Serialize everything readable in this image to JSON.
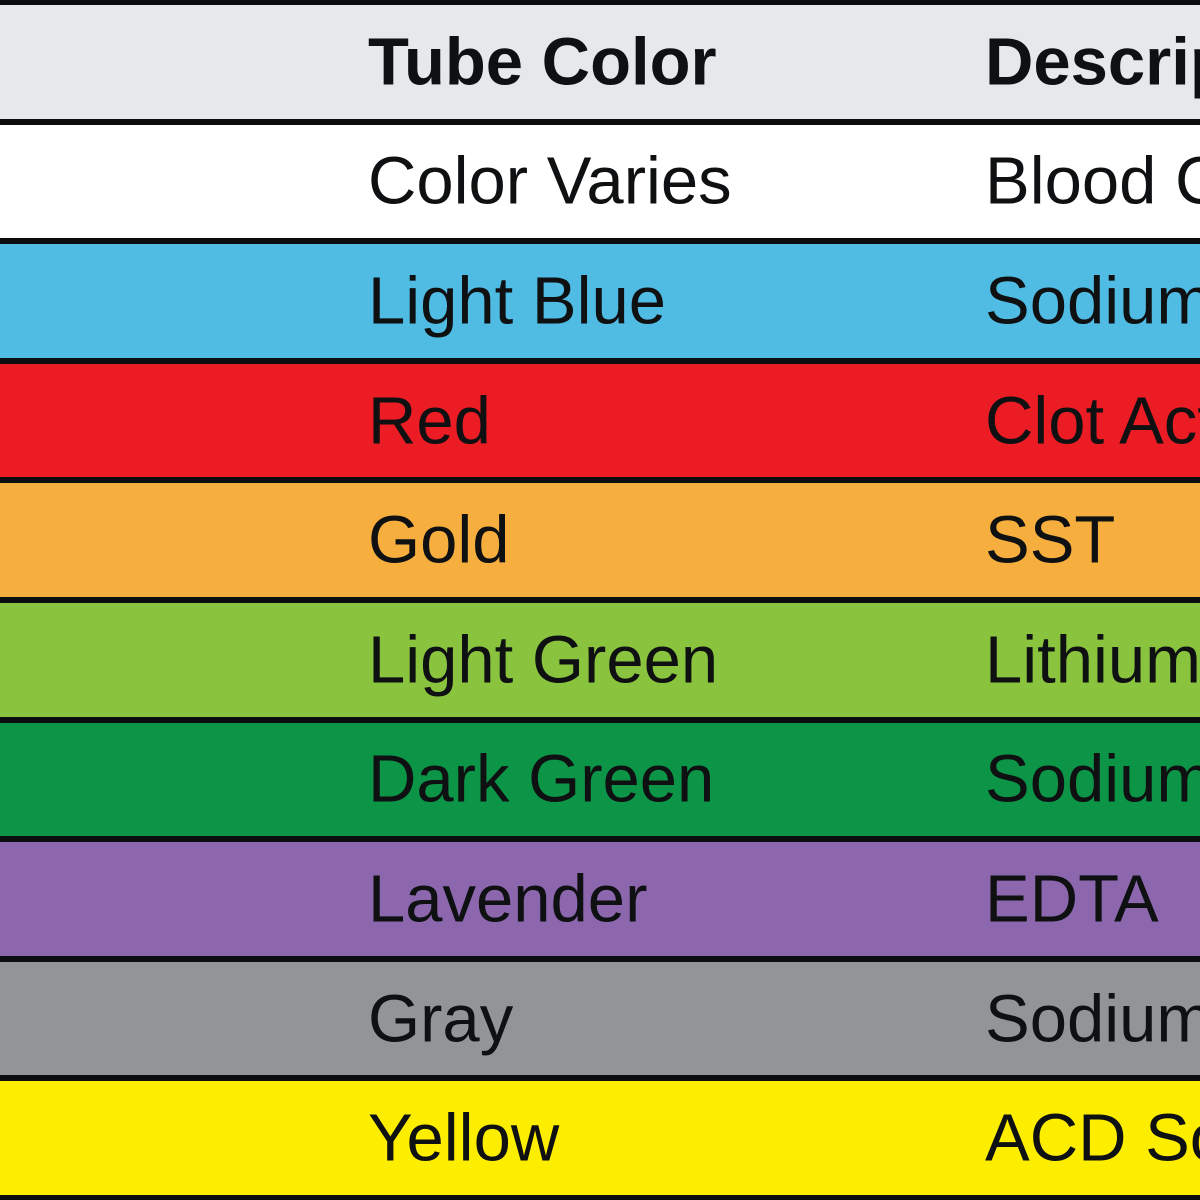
{
  "table": {
    "header_bg": "#e7e8ea",
    "border_color": "#0c0d0f",
    "text_color": "#0e1012",
    "columns": [
      {
        "label": "Tube Color"
      },
      {
        "label": "Descrip"
      }
    ],
    "rows": [
      {
        "tube_color": "Color Varies",
        "description": "Blood C",
        "bg": "#ffffff"
      },
      {
        "tube_color": "Light Blue",
        "description": "Sodium",
        "bg": "#50bce4"
      },
      {
        "tube_color": "Red",
        "description": "Clot Act",
        "bg": "#ec1c24"
      },
      {
        "tube_color": "Gold",
        "description": "SST",
        "bg": "#f6af3e"
      },
      {
        "tube_color": "Light Green",
        "description": "Lithium",
        "bg": "#8ac43f"
      },
      {
        "tube_color": "Dark Green",
        "description": "Sodium",
        "bg": "#0c9447"
      },
      {
        "tube_color": "Lavender",
        "description": "EDTA",
        "bg": "#8c67ae"
      },
      {
        "tube_color": "Gray",
        "description": "Sodium",
        "bg": "#929497"
      },
      {
        "tube_color": "Yellow",
        "description": "ACD So",
        "bg": "#fdee00"
      }
    ]
  }
}
